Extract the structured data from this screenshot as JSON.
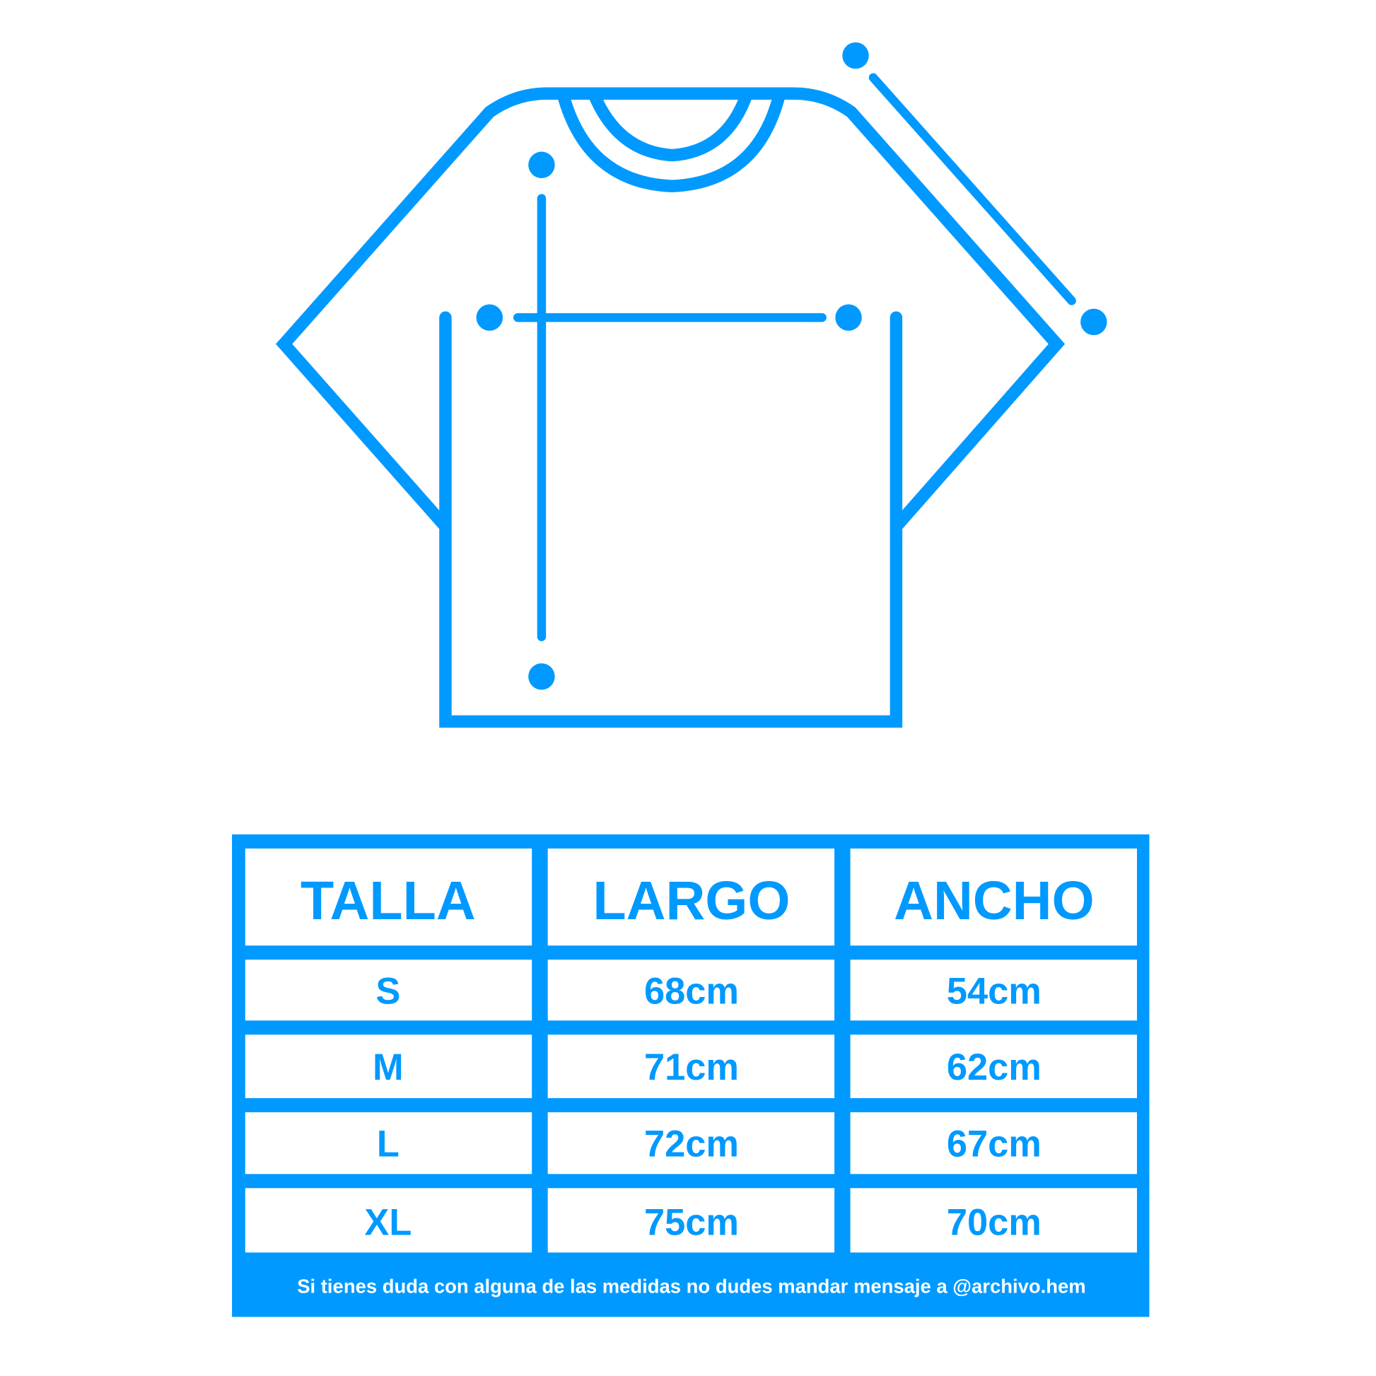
{
  "colors": {
    "accent": "#0099FF",
    "background": "#FFFFFF"
  },
  "diagram": {
    "icon": "t-shirt-measurement-diagram"
  },
  "table": {
    "headers": [
      "TALLA",
      "LARGO",
      "ANCHO"
    ],
    "rows": [
      [
        "S",
        "68cm",
        "54cm"
      ],
      [
        "M",
        "71cm",
        "62cm"
      ],
      [
        "L",
        "72cm",
        "67cm"
      ],
      [
        "XL",
        "75cm",
        "70cm"
      ]
    ],
    "footer": "Si tienes duda con alguna de las medidas no dudes mandar mensaje a @archivo.hem"
  }
}
